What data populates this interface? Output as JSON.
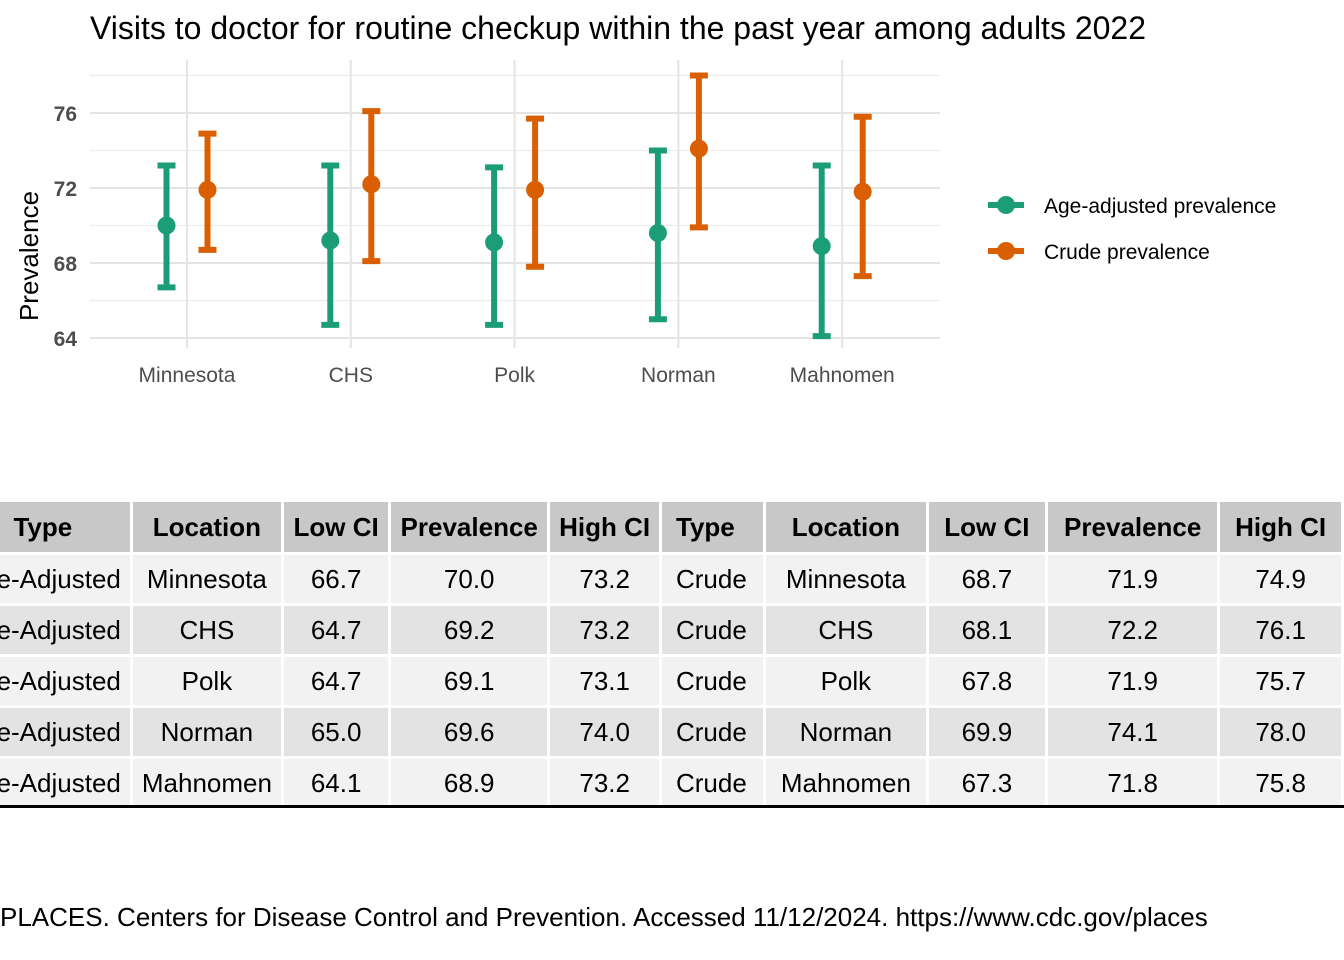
{
  "page": {
    "caption": "PLACES. Centers for Disease Control and Prevention. Accessed 11/12/2024. https://www.cdc.gov/places"
  },
  "chart_data": {
    "type": "scatter",
    "title": "Visits to doctor for routine checkup within the past year among adults 2022",
    "xlabel": "",
    "ylabel": "Prevalence",
    "categories": [
      "Minnesota",
      "CHS",
      "Polk",
      "Norman",
      "Mahnomen"
    ],
    "yticks": [
      64,
      68,
      72,
      76
    ],
    "ylim": [
      64,
      78
    ],
    "grid": true,
    "legend_position": "right",
    "series": [
      {
        "name": "Age-adjusted prevalence",
        "color": "#1b9e77",
        "values": [
          70.0,
          69.2,
          69.1,
          69.6,
          68.9
        ],
        "low": [
          66.7,
          64.7,
          64.7,
          65.0,
          64.1
        ],
        "high": [
          73.2,
          73.2,
          73.1,
          74.0,
          73.2
        ]
      },
      {
        "name": "Crude prevalence",
        "color": "#d95f02",
        "values": [
          71.9,
          72.2,
          71.9,
          74.1,
          71.8
        ],
        "low": [
          68.7,
          68.1,
          67.8,
          69.9,
          67.3
        ],
        "high": [
          74.9,
          76.1,
          75.7,
          78.0,
          75.8
        ]
      }
    ]
  },
  "table_left": {
    "headers": [
      "Type",
      "Location",
      "Low CI",
      "Prevalence",
      "High CI"
    ],
    "rows": [
      [
        "Age-Adjusted",
        "Minnesota",
        "66.7",
        "70.0",
        "73.2"
      ],
      [
        "Age-Adjusted",
        "CHS",
        "64.7",
        "69.2",
        "73.2"
      ],
      [
        "Age-Adjusted",
        "Polk",
        "64.7",
        "69.1",
        "73.1"
      ],
      [
        "Age-Adjusted",
        "Norman",
        "65.0",
        "69.6",
        "74.0"
      ],
      [
        "Age-Adjusted",
        "Mahnomen",
        "64.1",
        "68.9",
        "73.2"
      ]
    ]
  },
  "table_right": {
    "headers": [
      "Type",
      "Location",
      "Low CI",
      "Prevalence",
      "High CI"
    ],
    "rows": [
      [
        "Crude",
        "Minnesota",
        "68.7",
        "71.9",
        "74.9"
      ],
      [
        "Crude",
        "CHS",
        "68.1",
        "72.2",
        "76.1"
      ],
      [
        "Crude",
        "Polk",
        "67.8",
        "71.9",
        "75.7"
      ],
      [
        "Crude",
        "Norman",
        "69.9",
        "74.1",
        "78.0"
      ],
      [
        "Crude",
        "Mahnomen",
        "67.3",
        "71.8",
        "75.8"
      ]
    ]
  }
}
